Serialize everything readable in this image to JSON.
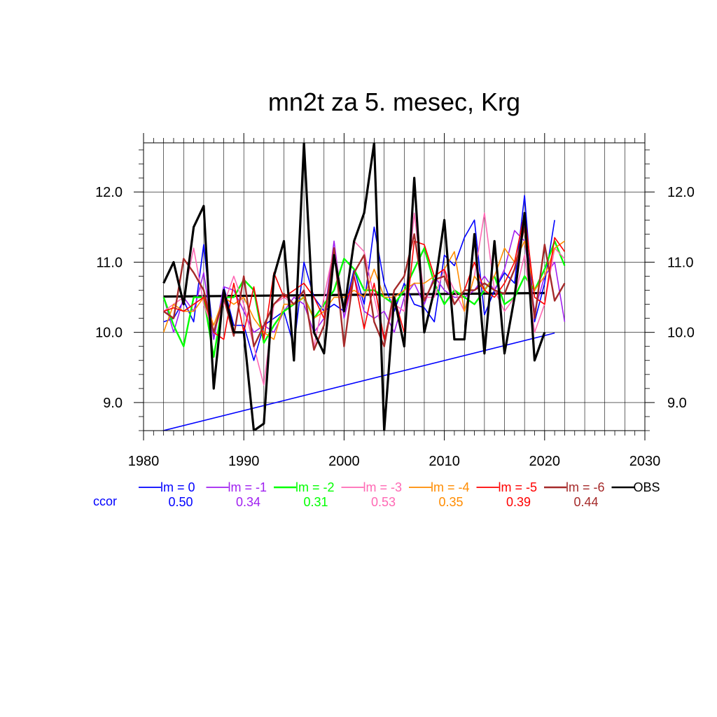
{
  "chart_data": {
    "type": "line",
    "title": "mn2t za 5. mesec, Krg",
    "xlim": [
      1980,
      2030
    ],
    "ylim": [
      8.6,
      12.7
    ],
    "x_ticks": [
      1980,
      1990,
      2000,
      2010,
      2020,
      2030
    ],
    "x_tick_labels": [
      "1980",
      "1990",
      "2000",
      "2010",
      "2020",
      "2030"
    ],
    "y_ticks": [
      9.0,
      10.0,
      11.0,
      12.0
    ],
    "y_tick_labels": [
      "9.0",
      "10.0",
      "11.0",
      "12.0"
    ],
    "grid": true,
    "legend_position": "bottom",
    "ccor_label": "ccor",
    "ccor_color": "#0000ff",
    "series": [
      {
        "name": "lm = 0",
        "color": "#0000ff",
        "ccor": "0.50",
        "width": 1.6,
        "x": [
          1982,
          1983,
          1984,
          1985,
          1986,
          1987,
          1988,
          1989,
          1990,
          1991,
          1992,
          1993,
          1994,
          1995,
          1996,
          1997,
          1998,
          1999,
          2000,
          2001,
          2002,
          2003,
          2004,
          2005,
          2006,
          2007,
          2008,
          2009,
          2010,
          2011,
          2012,
          2013,
          2014,
          2015,
          2016,
          2017,
          2018,
          2019,
          2020,
          2021
        ],
        "y": [
          10.15,
          10.2,
          10.45,
          10.15,
          11.25,
          9.9,
          10.65,
          10.1,
          10.1,
          9.6,
          10.1,
          10.2,
          10.3,
          9.8,
          11.0,
          10.5,
          10.3,
          10.4,
          10.3,
          10.9,
          10.4,
          11.5,
          10.7,
          10.3,
          10.7,
          10.4,
          10.35,
          10.15,
          11.1,
          10.95,
          11.35,
          11.6,
          10.25,
          10.6,
          10.85,
          10.7,
          11.95,
          10.15,
          10.7,
          11.6
        ]
      },
      {
        "name": "lm = -1",
        "color": "#a020f0",
        "ccor": "0.34",
        "width": 1.6,
        "x": [
          1982,
          1983,
          1984,
          1985,
          1986,
          1987,
          1988,
          1989,
          1990,
          1991,
          1992,
          1993,
          1994,
          1995,
          1996,
          1997,
          1998,
          1999,
          2000,
          2001,
          2002,
          2003,
          2004,
          2005,
          2006,
          2007,
          2008,
          2009,
          2010,
          2011,
          2012,
          2013,
          2014,
          2015,
          2016,
          2017,
          2018,
          2019,
          2020,
          2021,
          2022
        ],
        "y": [
          10.5,
          10.0,
          10.5,
          10.3,
          10.85,
          9.9,
          10.65,
          10.6,
          10.3,
          10.0,
          10.1,
          10.0,
          10.3,
          10.5,
          10.4,
          10.0,
          10.2,
          11.3,
          10.2,
          10.8,
          10.3,
          10.2,
          10.3,
          10.0,
          10.5,
          10.7,
          10.4,
          10.8,
          10.6,
          10.5,
          10.5,
          10.6,
          10.8,
          10.6,
          10.9,
          11.45,
          11.3,
          10.3,
          10.8,
          11.0,
          10.15
        ]
      },
      {
        "name": "lm = -2",
        "color": "#00ff00",
        "ccor": "0.31",
        "width": 2.4,
        "x": [
          1982,
          1983,
          1984,
          1985,
          1986,
          1987,
          1988,
          1989,
          1990,
          1991,
          1992,
          1993,
          1994,
          1995,
          1996,
          1997,
          1998,
          1999,
          2000,
          2001,
          2002,
          2003,
          2004,
          2005,
          2006,
          2007,
          2008,
          2009,
          2010,
          2011,
          2012,
          2013,
          2014,
          2015,
          2016,
          2017,
          2018,
          2019,
          2020,
          2021,
          2022
        ],
        "y": [
          10.5,
          10.1,
          9.8,
          10.5,
          10.5,
          9.65,
          10.5,
          10.5,
          10.75,
          10.6,
          9.85,
          10.1,
          10.3,
          10.4,
          10.5,
          10.2,
          10.4,
          10.6,
          11.05,
          10.9,
          10.6,
          10.6,
          10.5,
          10.4,
          10.6,
          10.9,
          11.2,
          10.7,
          10.4,
          10.6,
          10.5,
          10.4,
          10.6,
          10.8,
          10.4,
          10.5,
          10.8,
          10.6,
          10.9,
          11.3,
          10.95
        ]
      },
      {
        "name": "lm = -3",
        "color": "#ff69b4",
        "ccor": "0.53",
        "width": 1.6,
        "x": [
          1982,
          1983,
          1984,
          1985,
          1986,
          1987,
          1988,
          1989,
          1990,
          1991,
          1992,
          1993,
          1994,
          1995,
          1996,
          1997,
          1998,
          1999,
          2000,
          2001,
          2002,
          2003,
          2004,
          2005,
          2006,
          2007,
          2008,
          2009,
          2010,
          2011,
          2012,
          2013,
          2014,
          2015,
          2016,
          2017,
          2018,
          2019,
          2020,
          2021,
          2022
        ],
        "y": [
          10.3,
          10.4,
          10.5,
          11.2,
          10.4,
          10.0,
          10.4,
          10.8,
          10.4,
          9.8,
          9.25,
          10.4,
          10.5,
          10.4,
          10.6,
          9.8,
          10.5,
          11.2,
          10.3,
          11.3,
          11.15,
          10.5,
          9.9,
          10.4,
          10.3,
          11.7,
          10.5,
          10.5,
          10.9,
          10.6,
          10.3,
          10.8,
          11.7,
          10.6,
          10.3,
          10.5,
          11.1,
          10.0,
          10.4,
          11.2,
          11.05
        ]
      },
      {
        "name": "lm = -4",
        "color": "#ff8c00",
        "ccor": "0.35",
        "width": 1.6,
        "x": [
          1982,
          1983,
          1984,
          1985,
          1986,
          1987,
          1988,
          1989,
          1990,
          1991,
          1992,
          1993,
          1994,
          1995,
          1996,
          1997,
          1998,
          1999,
          2000,
          2001,
          2002,
          2003,
          2004,
          2005,
          2006,
          2007,
          2008,
          2009,
          2010,
          2011,
          2012,
          2013,
          2014,
          2015,
          2016,
          2017,
          2018,
          2019,
          2020,
          2021,
          2022
        ],
        "y": [
          10.0,
          10.4,
          10.3,
          10.3,
          10.5,
          10.1,
          10.5,
          10.4,
          10.5,
          10.2,
          10.0,
          9.9,
          10.4,
          10.4,
          10.5,
          10.2,
          10.3,
          10.5,
          10.5,
          10.6,
          10.5,
          10.9,
          10.5,
          10.5,
          10.6,
          10.7,
          10.7,
          10.8,
          10.9,
          11.15,
          10.3,
          10.8,
          10.6,
          10.8,
          11.2,
          11.0,
          11.3,
          10.6,
          10.8,
          11.2,
          11.3
        ]
      },
      {
        "name": "lm = -5",
        "color": "#ff0000",
        "ccor": "0.39",
        "width": 1.6,
        "x": [
          1982,
          1983,
          1984,
          1985,
          1986,
          1987,
          1988,
          1989,
          1990,
          1991,
          1992,
          1993,
          1994,
          1995,
          1996,
          1997,
          1998,
          1999,
          2000,
          2001,
          2002,
          2003,
          2004,
          2005,
          2006,
          2007,
          2008,
          2009,
          2010,
          2011,
          2012,
          2013,
          2014,
          2015,
          2016,
          2017,
          2018,
          2019,
          2020,
          2021,
          2022
        ],
        "y": [
          10.3,
          10.35,
          10.3,
          10.4,
          10.5,
          10.0,
          9.9,
          10.7,
          10.0,
          10.65,
          9.9,
          10.85,
          10.5,
          10.6,
          10.7,
          10.5,
          10.2,
          11.1,
          10.3,
          10.8,
          10.05,
          10.7,
          9.9,
          10.5,
          10.0,
          11.3,
          11.25,
          10.8,
          10.9,
          10.4,
          10.6,
          11.0,
          10.6,
          10.5,
          10.7,
          11.0,
          11.7,
          10.5,
          10.4,
          11.35,
          11.15
        ]
      },
      {
        "name": "lm = -6",
        "color": "#a52a2a",
        "ccor": "0.44",
        "width": 2.4,
        "x": [
          1982,
          1983,
          1984,
          1985,
          1986,
          1987,
          1988,
          1989,
          1990,
          1991,
          1992,
          1993,
          1994,
          1995,
          1996,
          1997,
          1998,
          1999,
          2000,
          2001,
          2002,
          2003,
          2004,
          2005,
          2006,
          2007,
          2008,
          2009,
          2010,
          2011,
          2012,
          2013,
          2014,
          2015,
          2016,
          2017,
          2018,
          2019,
          2020,
          2021,
          2022
        ],
        "y": [
          10.3,
          10.2,
          11.05,
          10.85,
          10.6,
          10.0,
          10.5,
          9.95,
          10.8,
          9.8,
          10.1,
          10.4,
          10.55,
          10.4,
          10.6,
          9.75,
          10.1,
          11.2,
          9.8,
          10.85,
          11.1,
          10.15,
          9.8,
          10.6,
          10.8,
          11.4,
          10.45,
          10.75,
          10.8,
          10.4,
          10.6,
          10.6,
          10.7,
          10.6,
          10.55,
          10.9,
          11.5,
          10.2,
          11.25,
          10.45,
          10.7
        ]
      },
      {
        "name": "OBS",
        "color": "#000000",
        "ccor": "",
        "width": 3.2,
        "x": [
          1982,
          1983,
          1984,
          1985,
          1986,
          1987,
          1988,
          1989,
          1990,
          1991,
          1992,
          1993,
          1994,
          1995,
          1996,
          1997,
          1998,
          1999,
          2000,
          2001,
          2002,
          2003,
          2004,
          2005,
          2006,
          2007,
          2008,
          2009,
          2010,
          2011,
          2012,
          2013,
          2014,
          2015,
          2016,
          2017,
          2018,
          2019,
          2020
        ],
        "y": [
          10.7,
          11.0,
          10.4,
          11.5,
          11.8,
          9.2,
          10.6,
          10.0,
          10.0,
          8.6,
          8.7,
          10.8,
          11.3,
          9.6,
          12.7,
          10.0,
          9.7,
          11.1,
          10.3,
          11.3,
          11.7,
          12.7,
          8.6,
          10.5,
          9.8,
          12.2,
          10.0,
          10.6,
          11.6,
          9.9,
          9.9,
          11.4,
          9.7,
          11.3,
          9.7,
          10.5,
          11.7,
          9.6,
          10.0
        ]
      }
    ],
    "trend_lines": [
      {
        "color": "#000000",
        "x": [
          1982,
          2020
        ],
        "y": [
          10.51,
          10.56
        ],
        "width": 3.2
      },
      {
        "color": "#0000ff",
        "x": [
          1980,
          2021
        ],
        "y": [
          8.53,
          9.99
        ],
        "width": 1.6
      }
    ]
  }
}
